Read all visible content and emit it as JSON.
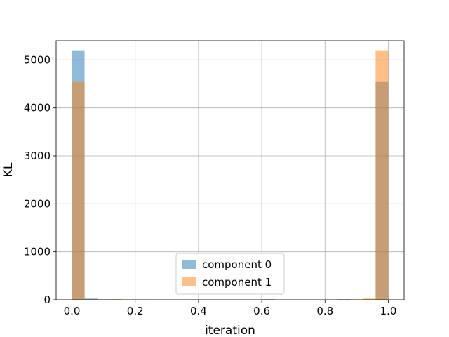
{
  "chart_data": {
    "type": "bar",
    "subtype": "histogram-overlay",
    "xlabel": "iteration",
    "ylabel": "KL",
    "xlim": [
      -0.05,
      1.05
    ],
    "ylim": [
      0,
      5400
    ],
    "xticks": [
      0.0,
      0.2,
      0.4,
      0.6,
      0.8,
      1.0
    ],
    "xtick_labels": [
      "0.0",
      "0.2",
      "0.4",
      "0.6",
      "0.8",
      "1.0"
    ],
    "yticks": [
      0,
      1000,
      2000,
      3000,
      4000,
      5000
    ],
    "ytick_labels": [
      "0",
      "1000",
      "2000",
      "3000",
      "4000",
      "5000"
    ],
    "grid": true,
    "legend_position": "lower-center",
    "bin_edges": [
      0.0,
      0.04,
      0.08,
      0.12,
      0.16,
      0.2,
      0.24,
      0.28,
      0.32,
      0.36,
      0.4,
      0.44,
      0.48,
      0.52,
      0.56,
      0.6,
      0.64,
      0.68,
      0.72,
      0.76,
      0.8,
      0.84,
      0.88,
      0.92,
      0.96,
      1.0
    ],
    "series": [
      {
        "name": "component 0",
        "color": "#1f77b4",
        "opacity": 0.5,
        "values": [
          5200,
          25,
          10,
          8,
          5,
          6,
          3,
          2,
          2,
          1,
          3,
          1,
          1,
          2,
          1,
          12,
          1,
          2,
          1,
          2,
          3,
          12,
          6,
          3,
          4540
        ]
      },
      {
        "name": "component 1",
        "color": "#ff7f0e",
        "opacity": 0.5,
        "values": [
          4540,
          5,
          8,
          12,
          3,
          4,
          2,
          2,
          3,
          8,
          2,
          1,
          1,
          2,
          1,
          2,
          1,
          2,
          1,
          2,
          5,
          8,
          10,
          25,
          5200
        ]
      }
    ]
  }
}
